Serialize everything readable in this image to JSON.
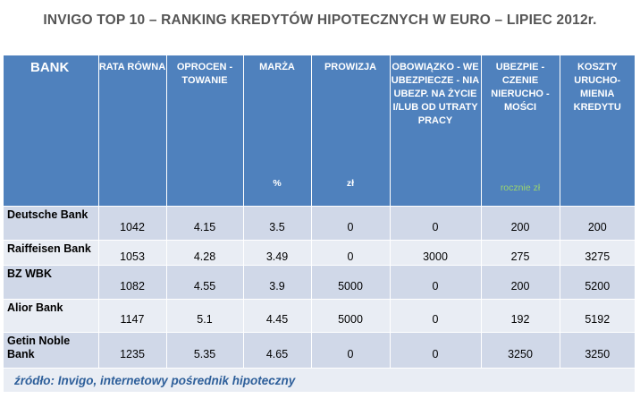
{
  "title": "INVIGO TOP 10 – RANKING KREDYTÓW HIPOTECZNYCH W EURO – LIPIEC  2012r.",
  "headers": [
    {
      "label": "BANK",
      "unit": ""
    },
    {
      "label": "RATA RÓWNA",
      "unit": ""
    },
    {
      "label": "OPROCEN - TOWANIE",
      "unit": ""
    },
    {
      "label": "MARŻA",
      "unit": "%"
    },
    {
      "label": "PROWIZJA",
      "unit": "zł"
    },
    {
      "label": "OBOWIĄZKO - WE UBEZPIECZE - NIA UBEZP. NA ŻYCIE I/LUB OD UTRATY PRACY",
      "unit": ""
    },
    {
      "label": "UBEZPIE - CZENIE NIERUCHO - MOŚCI",
      "unit": "rocznie zł"
    },
    {
      "label": "KOSZTY URUCHO- MIENIA KREDYTU",
      "unit": ""
    }
  ],
  "rows": [
    {
      "bank": "Deutsche Bank",
      "values": [
        "1042",
        "4.15",
        "3.5",
        "0",
        "0",
        "200",
        "200"
      ]
    },
    {
      "bank": "Raiffeisen Bank",
      "values": [
        "1053",
        "4.28",
        "3.49",
        "0",
        "3000",
        "275",
        "3275"
      ]
    },
    {
      "bank": "BZ WBK",
      "values": [
        "1082",
        "4.55",
        "3.9",
        "5000",
        "0",
        "200",
        "5200"
      ]
    },
    {
      "bank": "Alior Bank",
      "values": [
        "1147",
        "5.1",
        "4.45",
        "5000",
        "0",
        "192",
        "5192"
      ]
    },
    {
      "bank": "Getin Noble Bank",
      "values": [
        "1235",
        "5.35",
        "4.65",
        "0",
        "0",
        "3250",
        "3250"
      ]
    }
  ],
  "source": "źródło: Invigo, internetowy pośrednik hipoteczny",
  "colors": {
    "header_bg": "#4f81bd",
    "row_dark": "#d0d8e8",
    "row_light": "#e9edf4",
    "source_text": "#2e5f9a",
    "unit_green": "#9bd46c"
  }
}
